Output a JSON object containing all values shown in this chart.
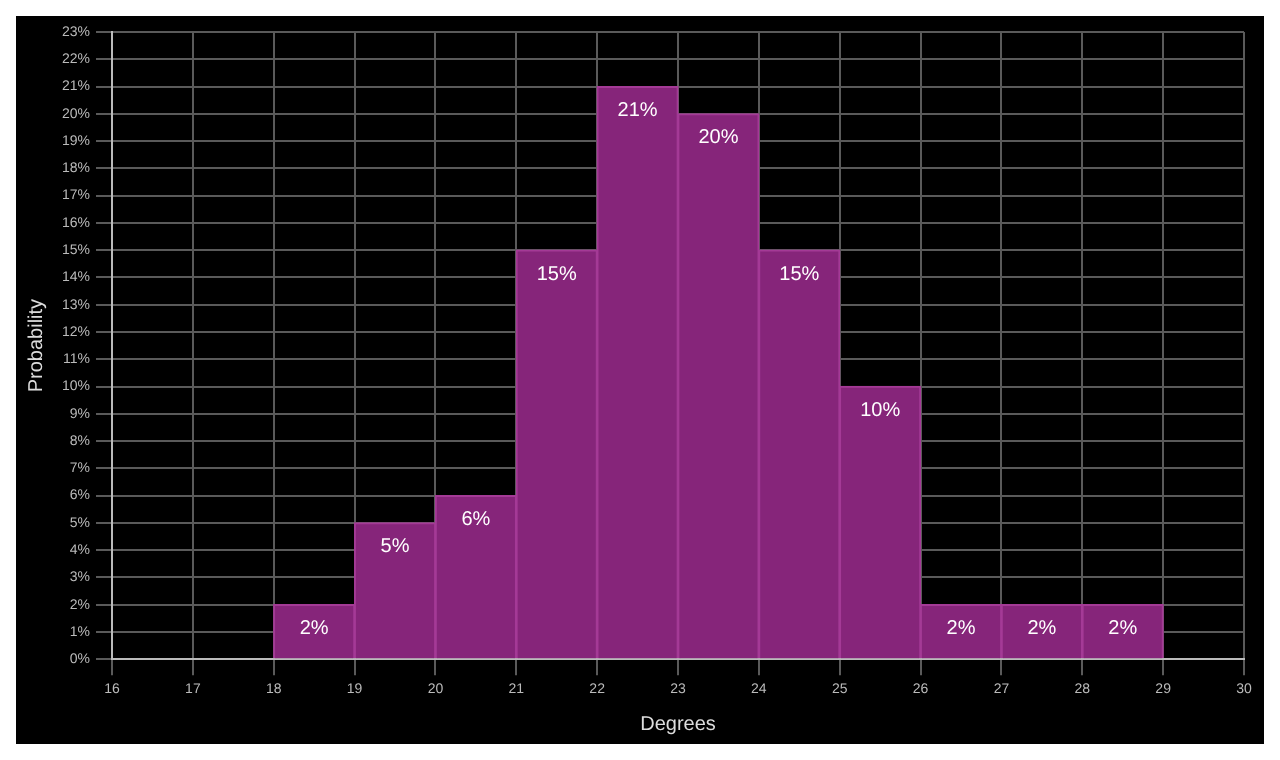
{
  "chart_data": {
    "type": "histogram",
    "xlabel": "Degrees",
    "ylabel": "Probability",
    "bins": [
      18,
      19,
      20,
      21,
      22,
      23,
      24,
      25,
      26,
      27,
      28,
      29
    ],
    "values": [
      2,
      5,
      6,
      15,
      21,
      20,
      15,
      10,
      2,
      2,
      2
    ],
    "value_labels": [
      "2%",
      "5%",
      "6%",
      "15%",
      "21%",
      "20%",
      "15%",
      "10%",
      "2%",
      "2%",
      "2%"
    ],
    "color": "#86257a",
    "xlim": [
      16,
      30
    ],
    "xticks": [
      16,
      17,
      18,
      19,
      20,
      21,
      22,
      23,
      24,
      25,
      26,
      27,
      28,
      29,
      30
    ],
    "ylim": [
      0,
      23
    ],
    "yticks": [
      {
        "value": 0,
        "label": "0%"
      },
      {
        "value": 1,
        "label": "1%"
      },
      {
        "value": 2,
        "label": "2%"
      },
      {
        "value": 3,
        "label": "3%"
      },
      {
        "value": 4,
        "label": "4%"
      },
      {
        "value": 5,
        "label": "5%"
      },
      {
        "value": 6,
        "label": "6%"
      },
      {
        "value": 7,
        "label": "7%"
      },
      {
        "value": 8,
        "label": "8%"
      },
      {
        "value": 9,
        "label": "9%"
      },
      {
        "value": 10,
        "label": "10%"
      },
      {
        "value": 11,
        "label": "11%"
      },
      {
        "value": 12,
        "label": "12%"
      },
      {
        "value": 13,
        "label": "13%"
      },
      {
        "value": 14,
        "label": "14%"
      },
      {
        "value": 15,
        "label": "15%"
      },
      {
        "value": 16,
        "label": "16%"
      },
      {
        "value": 17,
        "label": "17%"
      },
      {
        "value": 18,
        "label": "18%"
      },
      {
        "value": 19,
        "label": "19%"
      },
      {
        "value": 20,
        "label": "20%"
      },
      {
        "value": 21,
        "label": "21%"
      },
      {
        "value": 22,
        "label": "22%"
      },
      {
        "value": 23,
        "label": "23%"
      }
    ],
    "grid": true,
    "legend": false
  }
}
